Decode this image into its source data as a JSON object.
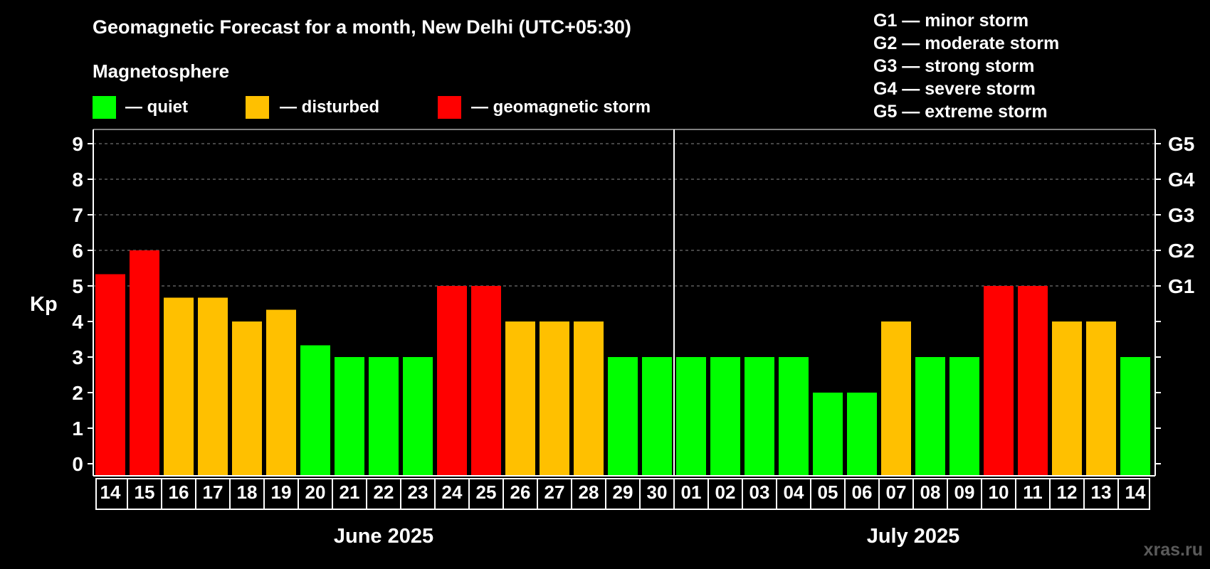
{
  "chart_data": {
    "type": "bar",
    "title": "Geomagnetic Forecast for a month, New Delhi (UTC+05:30)",
    "subtitle": "Magnetosphere",
    "ylabel": "Kp",
    "ylim": [
      0,
      9
    ],
    "yticks": [
      "0",
      "1",
      "2",
      "3",
      "4",
      "5",
      "6",
      "7",
      "8",
      "9"
    ],
    "grid": true,
    "legend": [
      {
        "label": "— quiet",
        "color": "#00ff00"
      },
      {
        "label": "— disturbed",
        "color": "#ffc000"
      },
      {
        "label": "— geomagnetic storm",
        "color": "#ff0000"
      }
    ],
    "storm_legend": [
      "G1 — minor storm",
      "G2 — moderate storm",
      "G3 — strong storm",
      "G4 — severe storm",
      "G5 — extreme storm"
    ],
    "storm_levels": [
      {
        "kp": 5,
        "label": "G1"
      },
      {
        "kp": 6,
        "label": "G2"
      },
      {
        "kp": 7,
        "label": "G3"
      },
      {
        "kp": 8,
        "label": "G4"
      },
      {
        "kp": 9,
        "label": "G5"
      }
    ],
    "months": [
      {
        "label": "June 2025",
        "days": 17
      },
      {
        "label": "July 2025",
        "days": 14
      }
    ],
    "categories": [
      "14",
      "15",
      "16",
      "17",
      "18",
      "19",
      "20",
      "21",
      "22",
      "23",
      "24",
      "25",
      "26",
      "27",
      "28",
      "29",
      "30",
      "01",
      "02",
      "03",
      "04",
      "05",
      "06",
      "07",
      "08",
      "09",
      "10",
      "11",
      "12",
      "13",
      "14"
    ],
    "values": [
      5.33,
      6,
      4.67,
      4.67,
      4,
      4.33,
      3.33,
      3,
      3,
      3,
      5,
      5,
      4,
      4,
      4,
      3,
      3,
      3,
      3,
      3,
      3,
      2,
      2,
      4,
      3,
      3,
      5,
      5,
      4,
      4,
      3
    ],
    "colors": [
      "#ff0000",
      "#ff0000",
      "#ffc000",
      "#ffc000",
      "#ffc000",
      "#ffc000",
      "#00ff00",
      "#00ff00",
      "#00ff00",
      "#00ff00",
      "#ff0000",
      "#ff0000",
      "#ffc000",
      "#ffc000",
      "#ffc000",
      "#00ff00",
      "#00ff00",
      "#00ff00",
      "#00ff00",
      "#00ff00",
      "#00ff00",
      "#00ff00",
      "#00ff00",
      "#ffc000",
      "#00ff00",
      "#00ff00",
      "#ff0000",
      "#ff0000",
      "#ffc000",
      "#ffc000",
      "#00ff00"
    ],
    "watermark": "xras.ru"
  }
}
